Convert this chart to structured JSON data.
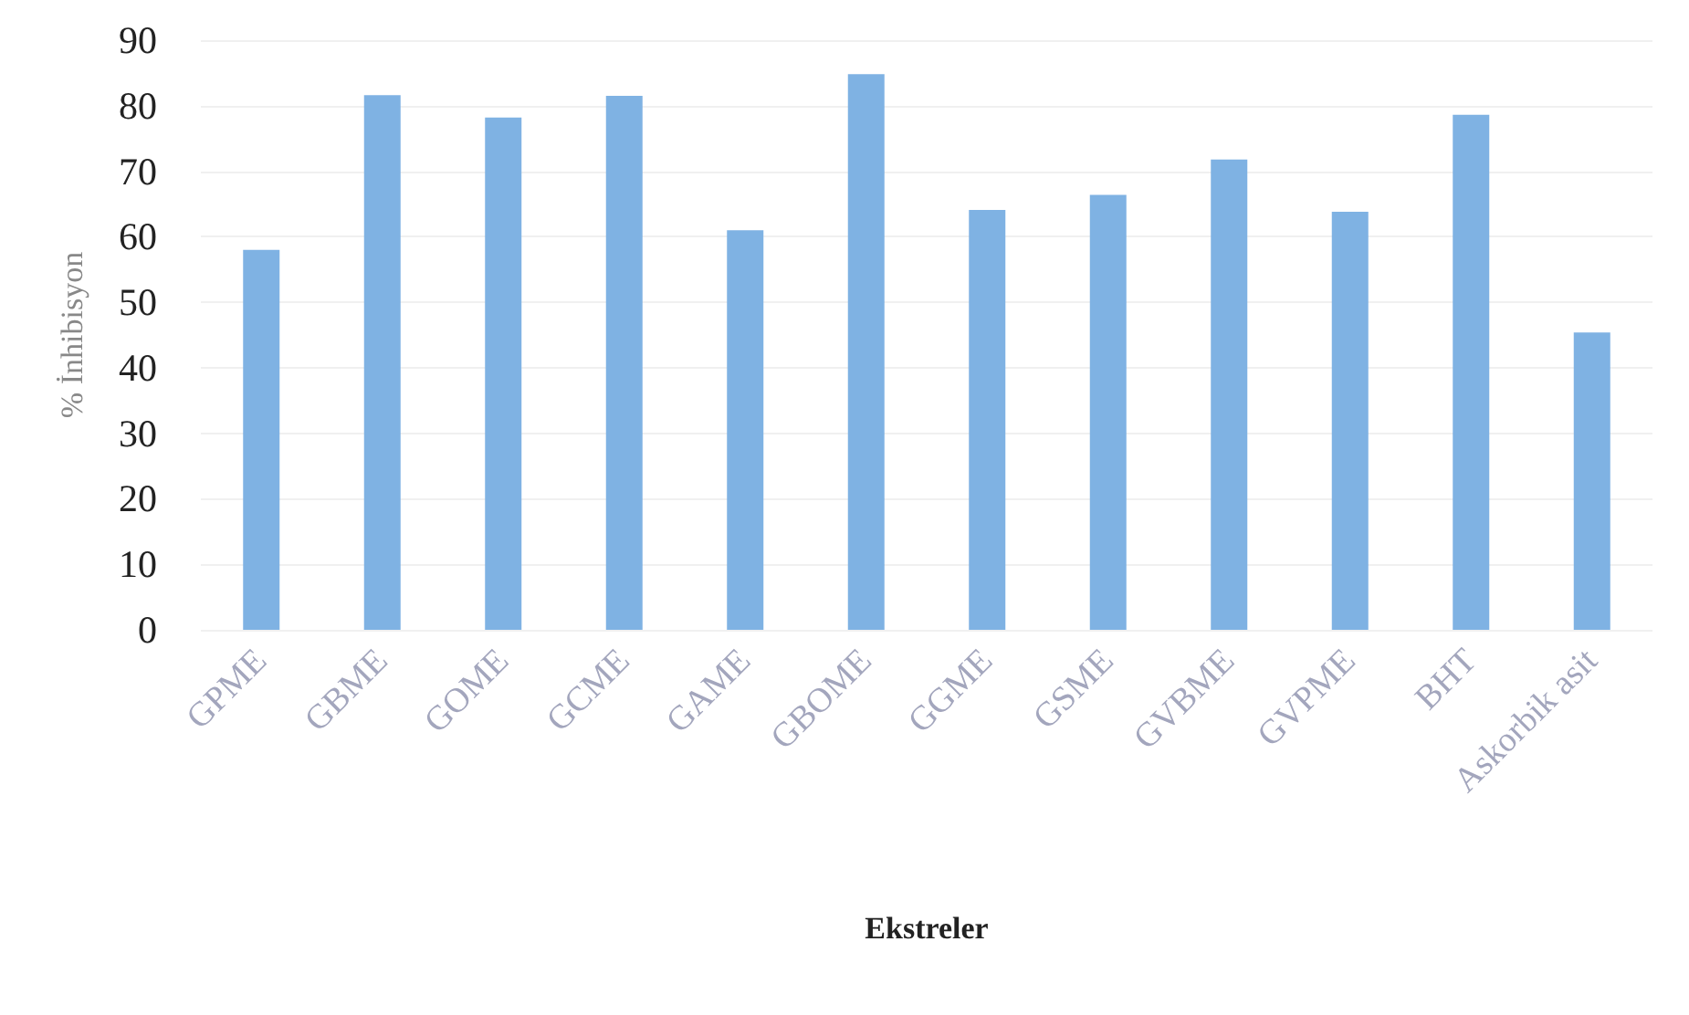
{
  "chart_data": {
    "type": "bar",
    "xlabel": "Ekstreler",
    "ylabel": "% İnhibisyon",
    "categories": [
      "GPME",
      "GBME",
      "GOME",
      "GCME",
      "GAME",
      "GBOME",
      "GGME",
      "GSME",
      "GVBME",
      "GVPME",
      "BHT",
      "Askorbik asit"
    ],
    "values": [
      58,
      81.6,
      78.2,
      81.5,
      61,
      84.8,
      64.1,
      66.4,
      71.8,
      63.8,
      78.6,
      45.4
    ],
    "color": "#7fb2e3",
    "ylim": [
      0,
      90
    ],
    "yticks": [
      0,
      10,
      20,
      30,
      40,
      50,
      60,
      70,
      80,
      90
    ],
    "grid": "y"
  }
}
